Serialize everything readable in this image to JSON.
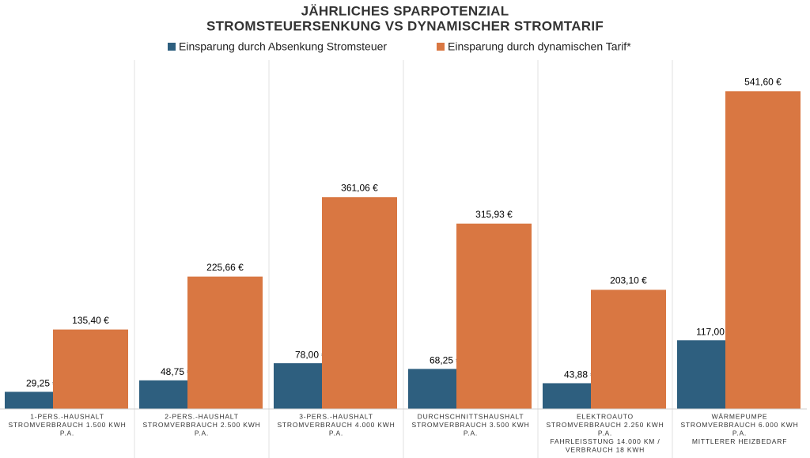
{
  "chart_data": {
    "type": "bar",
    "title": [
      "JÄHRLICHES SPARPOTENZIAL",
      "STROMSTEUERSENKUNG VS DYNAMISCHER STROMTARIF"
    ],
    "categories": [
      [
        "1-PERS.-HAUSHALT",
        "STROMVERBRAUCH 1.500 KWH",
        "P.A."
      ],
      [
        "2-PERS.-HAUSHALT",
        "STROMVERBRAUCH 2.500 KWH",
        "P.A."
      ],
      [
        "3-PERS.-HAUSHALT",
        "STROMVERBRAUCH  4.000  KWH",
        "P.A."
      ],
      [
        "DURCHSCHNITTSHAUSHALT",
        "STROMVERBRAUCH  3.500 KWH",
        "P.A."
      ],
      [
        "ELEKTROAUTO",
        "STROMVERBRAUCH  2.250 KWH",
        "P.A.",
        "FAHRLEISSTUNG 14.000 KM /",
        "VERBRAUCH 18 KWH"
      ],
      [
        "WÄRMEPUMPE",
        "STROMVERBRAUCH  6.000 KWH",
        "P.A.",
        "MITTLERER HEIZBEDARF"
      ]
    ],
    "series": [
      {
        "name": "Einsparung durch Absenkung  Stromsteuer",
        "color": "#2e5f7f",
        "values": [
          29.25,
          48.75,
          78.0,
          68.25,
          43.88,
          117.0
        ],
        "value_labels": [
          "29,25 €",
          "48,75 €",
          "78,00 €",
          "68,25 €",
          "43,88 €",
          "117,00 €"
        ]
      },
      {
        "name": "Einsparung durch dynamischen Tarif*",
        "color": "#d97742",
        "values": [
          135.4,
          225.66,
          361.06,
          315.93,
          203.1,
          541.6
        ],
        "value_labels": [
          "135,40 €",
          "225,66 €",
          "361,06 €",
          "315,93 €",
          "203,10 €",
          "541,60 €"
        ]
      }
    ],
    "ylim": [
      0,
      600
    ]
  }
}
